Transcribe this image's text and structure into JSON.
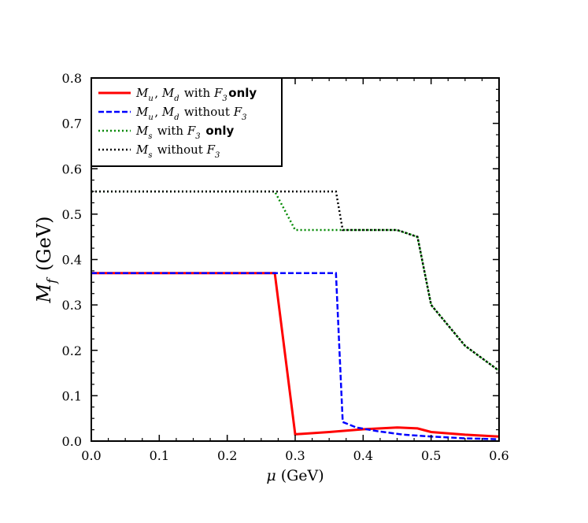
{
  "chart_data": {
    "type": "line",
    "xlabel": {
      "sym": "μ",
      "unit": "(GeV)"
    },
    "ylabel": {
      "sym": "M",
      "sub": "f",
      "unit": "(GeV)"
    },
    "xlim": [
      0.0,
      0.6
    ],
    "ylim": [
      0.0,
      0.8
    ],
    "xticks": [
      "0.0",
      "0.1",
      "0.2",
      "0.3",
      "0.4",
      "0.5",
      "0.6"
    ],
    "yticks": [
      "0.0",
      "0.1",
      "0.2",
      "0.3",
      "0.4",
      "0.5",
      "0.6",
      "0.7",
      "0.8"
    ],
    "grid": false,
    "legend_position": "top-left",
    "series": [
      {
        "name": "M_u, M_d with F_3 only",
        "legend": [
          {
            "t": "M",
            "s": "u",
            "i": true
          },
          {
            "t": ", "
          },
          {
            "t": "M",
            "s": "d",
            "i": true
          },
          {
            "t": " with "
          },
          {
            "t": "F",
            "s": "3",
            "i": true
          },
          {
            "t": "only",
            "b": true
          }
        ],
        "color": "#ff0000",
        "style": "solid",
        "x": [
          0.0,
          0.27,
          0.3,
          0.35,
          0.4,
          0.45,
          0.48,
          0.5,
          0.55,
          0.6
        ],
        "y": [
          0.37,
          0.37,
          0.015,
          0.02,
          0.026,
          0.03,
          0.028,
          0.02,
          0.014,
          0.01
        ]
      },
      {
        "name": "M_u, M_d without F_3",
        "legend": [
          {
            "t": "M",
            "s": "u",
            "i": true
          },
          {
            "t": ", "
          },
          {
            "t": "M",
            "s": "d",
            "i": true
          },
          {
            "t": " without "
          },
          {
            "t": "F",
            "s": "3",
            "i": true
          }
        ],
        "color": "#0000ff",
        "style": "dashed",
        "x": [
          0.0,
          0.36,
          0.37,
          0.39,
          0.42,
          0.46,
          0.5,
          0.55,
          0.6
        ],
        "y": [
          0.37,
          0.37,
          0.042,
          0.03,
          0.022,
          0.014,
          0.01,
          0.006,
          0.004
        ]
      },
      {
        "name": "M_s with F_3 only",
        "legend": [
          {
            "t": "M",
            "s": "s",
            "i": true
          },
          {
            "t": " with "
          },
          {
            "t": "F",
            "s": "3",
            "i": true
          },
          {
            "t": " only",
            "b": true
          }
        ],
        "color": "#008800",
        "style": "dotted",
        "x": [
          0.0,
          0.27,
          0.3,
          0.45,
          0.48,
          0.5,
          0.55,
          0.6
        ],
        "y": [
          0.55,
          0.55,
          0.465,
          0.465,
          0.45,
          0.3,
          0.21,
          0.155
        ]
      },
      {
        "name": "M_s without F_3",
        "legend": [
          {
            "t": "M",
            "s": "s",
            "i": true
          },
          {
            "t": " without "
          },
          {
            "t": "F",
            "s": "3",
            "i": true
          }
        ],
        "color": "#000000",
        "style": "dotted",
        "x": [
          0.0,
          0.36,
          0.37,
          0.45,
          0.48,
          0.5,
          0.55,
          0.6
        ],
        "y": [
          0.55,
          0.55,
          0.465,
          0.465,
          0.45,
          0.3,
          0.21,
          0.155
        ]
      }
    ]
  }
}
